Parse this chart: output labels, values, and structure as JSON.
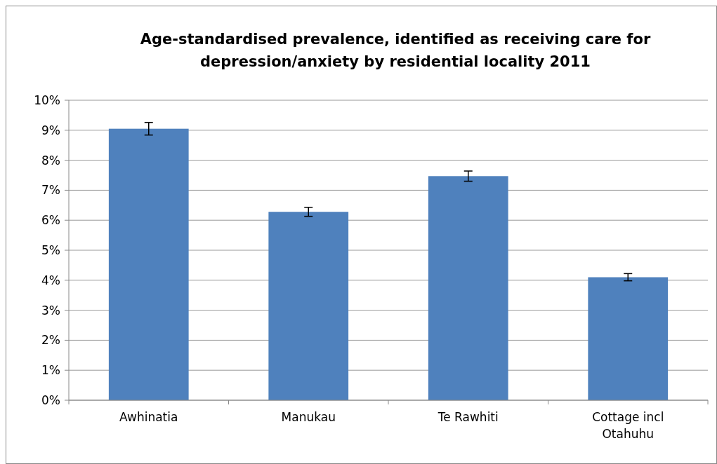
{
  "chart_data": {
    "type": "bar",
    "title": "Age-standardised prevalence, identified as receiving care for depression/anxiety by residential locality 2011",
    "categories": [
      "Awhinatia",
      "Manukau",
      "Te Rawhiti",
      "Cottage incl Otahuhu"
    ],
    "values": [
      9.05,
      6.28,
      7.47,
      4.1
    ],
    "color": "#4f81bd",
    "errors": [
      0.21,
      0.15,
      0.17,
      0.12
    ],
    "ylim": [
      0,
      10
    ],
    "yticks": [
      {
        "value": 0,
        "label": "0%"
      },
      {
        "value": 1,
        "label": "1%"
      },
      {
        "value": 2,
        "label": "2%"
      },
      {
        "value": 3,
        "label": "3%"
      },
      {
        "value": 4,
        "label": "4%"
      },
      {
        "value": 5,
        "label": "5%"
      },
      {
        "value": 6,
        "label": "6%"
      },
      {
        "value": 7,
        "label": "7%"
      },
      {
        "value": 8,
        "label": "8%"
      },
      {
        "value": 9,
        "label": "9%"
      },
      {
        "value": 10,
        "label": "10%"
      }
    ],
    "grid": "y"
  }
}
